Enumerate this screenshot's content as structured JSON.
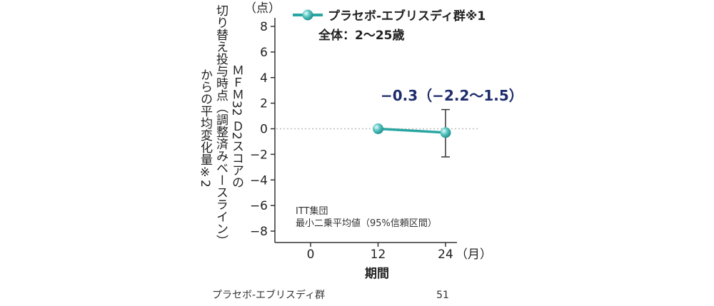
{
  "chart_data": {
    "type": "line",
    "title": "",
    "unit_label": "（点）",
    "ylabel_lines": [
      "ＭＦＭ32 Ｄ2スコアの",
      "切り替え投与時点（調整済みベースライン）",
      "からの平均変化量※2"
    ],
    "xlabel": "期間",
    "x_unit_label": "（月）",
    "ylim": [
      -8,
      8
    ],
    "y_ticks": [
      "8",
      "6",
      "4",
      "2",
      "0",
      "−2",
      "−4",
      "−6",
      "−8"
    ],
    "y_tick_values": [
      8,
      6,
      4,
      2,
      0,
      -2,
      -4,
      -6,
      -8
    ],
    "x_ticks": [
      "0",
      "12",
      "24"
    ],
    "x_tick_values": [
      0,
      12,
      24
    ],
    "series": [
      {
        "name": "プラセボ-エブリスディ群※1",
        "subtitle": "全体：2～25歳",
        "color": "#2aa6a2",
        "x": [
          12,
          24
        ],
        "y": [
          0,
          -0.3
        ],
        "error_low": [
          null,
          -2.2
        ],
        "error_high": [
          null,
          1.5
        ]
      }
    ],
    "annotation": "−0.3（−2.2～1.5）",
    "notes": [
      "ITT集団",
      "最小二乗平均値（95%信頼区間）"
    ],
    "n_row": {
      "label": "プラセボ-エブリスディ群",
      "values": [
        "51"
      ]
    },
    "grid": false,
    "reference_line": 0,
    "legend_position": "top"
  }
}
